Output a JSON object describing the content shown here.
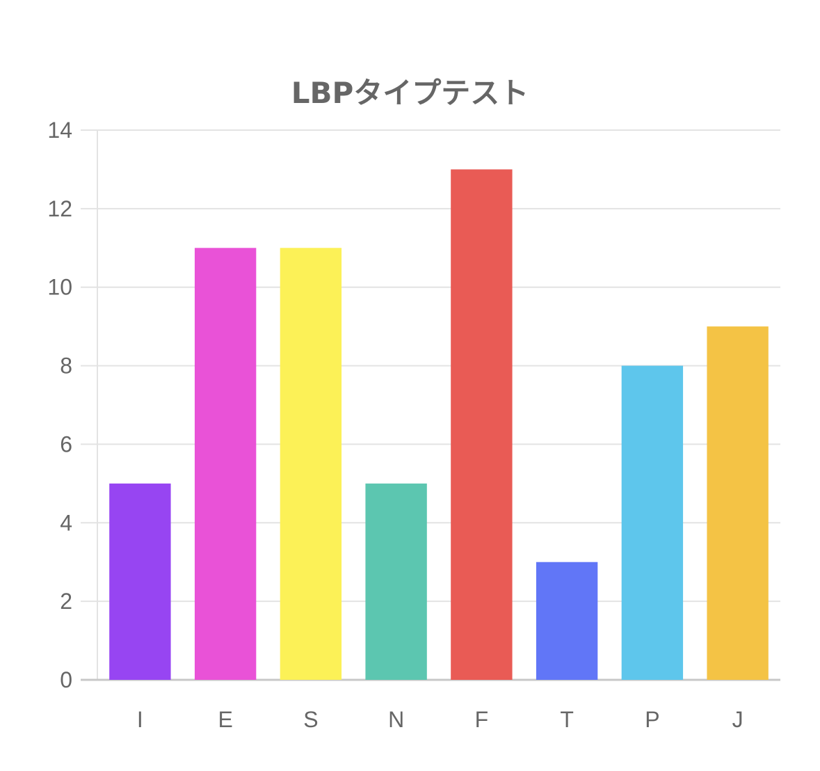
{
  "chart_data": {
    "type": "bar",
    "title": "LBPタイプテスト",
    "xlabel": "",
    "ylabel": "",
    "categories": [
      "I",
      "E",
      "S",
      "N",
      "F",
      "T",
      "P",
      "J"
    ],
    "values": [
      5,
      11,
      11,
      5,
      13,
      3,
      8,
      9
    ],
    "colors": [
      "#9745f2",
      "#e952d7",
      "#fcf157",
      "#5cc6b0",
      "#e95b55",
      "#6176f7",
      "#5ec6ec",
      "#f4c345"
    ],
    "ylim": [
      0,
      14
    ],
    "yticks": [
      0,
      2,
      4,
      6,
      8,
      10,
      12,
      14
    ],
    "grid": true,
    "legend": "none"
  }
}
